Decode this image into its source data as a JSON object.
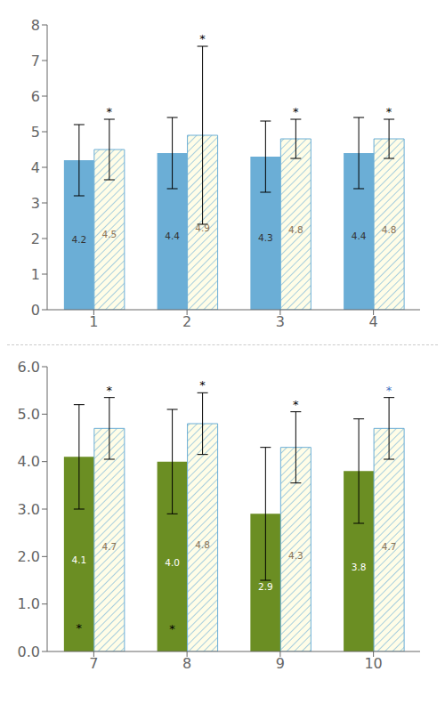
{
  "chart_data": [
    {
      "type": "bar",
      "categories": [
        "1",
        "2",
        "3",
        "4"
      ],
      "series": [
        {
          "color": "#6BAED6",
          "values": [
            4.2,
            4.4,
            4.3,
            4.4
          ],
          "errors": [
            1.0,
            1.0,
            1.0,
            1.0
          ],
          "label_color": "#333333"
        },
        {
          "color": "#FFFDE7",
          "edge_color": "#6BAED6",
          "values": [
            4.5,
            4.9,
            4.8,
            4.8
          ],
          "errors": [
            0.85,
            2.5,
            0.55,
            0.55
          ],
          "label_color": "#8B7355",
          "annotations": [
            "*",
            "*",
            "*",
            "*"
          ],
          "annotation_colors": [
            "black",
            "black",
            "black",
            "black"
          ]
        }
      ],
      "ylim": [
        0,
        8
      ],
      "yticks": [
        0,
        1,
        2,
        3,
        4,
        5,
        6,
        7,
        8
      ],
      "data_labels": true,
      "grid": false
    },
    {
      "type": "bar",
      "categories": [
        "7",
        "8",
        "9",
        "10"
      ],
      "series": [
        {
          "color": "#6B8E23",
          "values": [
            4.1,
            4.0,
            2.9,
            3.8
          ],
          "value_labels": [
            "4.1",
            "4.0",
            "2.9",
            "3.8"
          ],
          "errors": [
            1.1,
            1.1,
            1.4,
            1.1
          ],
          "label_color": "#FFFFFF",
          "annotations": [
            "*",
            "*",
            null,
            null
          ],
          "annotation_colors": [
            "black",
            "black",
            null,
            null
          ]
        },
        {
          "color": "#FFFDE7",
          "edge_color": "#6BAED6",
          "values": [
            4.7,
            4.8,
            4.3,
            4.7
          ],
          "errors": [
            0.65,
            0.65,
            0.75,
            0.65
          ],
          "label_color": "#8B7355",
          "annotations": [
            "*",
            "*",
            "*",
            "*"
          ],
          "annotation_colors": [
            "black",
            "black",
            "black",
            "#4472C4"
          ]
        }
      ],
      "ylim": [
        0,
        6.0
      ],
      "yticks": [
        {
          "value": 0,
          "label": "0.0"
        },
        {
          "value": 1,
          "label": "1.0"
        },
        {
          "value": 2,
          "label": "2.0"
        },
        {
          "value": 3,
          "label": "3.0"
        },
        {
          "value": 4,
          "label": "4.0"
        },
        {
          "value": 5,
          "label": "5.0"
        },
        {
          "value": 6,
          "label": "6.0"
        }
      ],
      "data_labels": true,
      "grid": false
    }
  ]
}
